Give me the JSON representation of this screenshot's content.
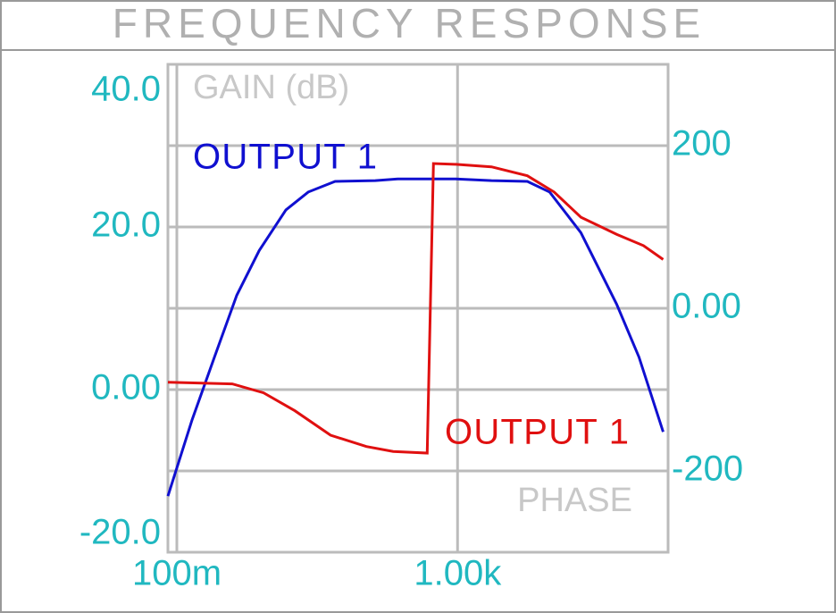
{
  "chart_data": {
    "type": "line",
    "title": "FREQUENCY RESPONSE",
    "y_label": "GAIN (dB)",
    "y2_label": "PHASE",
    "log_x": true,
    "grid": true,
    "xlim": [
      0.0746,
      1000000
    ],
    "xticks": [
      {
        "value": 0.1,
        "label": "100m"
      },
      {
        "value": 1000,
        "label": "1.00k"
      }
    ],
    "ylim": [
      -20,
      40
    ],
    "yticks": [
      {
        "value": 40,
        "label": "40.0"
      },
      {
        "value": 20,
        "label": "20.0"
      },
      {
        "value": 0,
        "label": "0.00"
      },
      {
        "value": -20,
        "label": "-20.0"
      }
    ],
    "y2lim": [
      -300,
      300
    ],
    "y2ticks": [
      200,
      {
        "value": 0,
        "label": "0.00"
      },
      -200
    ],
    "series": [
      {
        "name": "OUTPUT 1",
        "color": "#1010d0",
        "x": [
          0.0746,
          0.165,
          0.343,
          0.714,
          1.49,
          3.58,
          7.46,
          18,
          67.3,
          140,
          944,
          3050,
          9860,
          20500,
          57300,
          185000,
          385000,
          851000
        ],
        "values": [
          -13.1,
          -3.7,
          4.0,
          11.6,
          17.1,
          22.1,
          24.3,
          25.6,
          25.7,
          25.9,
          25.9,
          25.7,
          25.6,
          24.3,
          19.3,
          10.5,
          4.0,
          -5.2
        ]
      },
      {
        "name": "OUTPUT 1",
        "color": "#e01010",
        "axis": "y2",
        "x": [
          0.0746,
          0.616,
          1.72,
          4.81,
          15.5,
          50.2,
          121,
          369,
          453,
          944,
          3050,
          9860,
          23800,
          57300,
          185000,
          447000,
          851000
        ],
        "values": [
          -91,
          -93,
          -104,
          -126,
          -156,
          -170,
          -176,
          -178,
          178,
          177,
          174,
          163,
          143,
          112,
          91,
          77,
          60
        ]
      }
    ]
  }
}
